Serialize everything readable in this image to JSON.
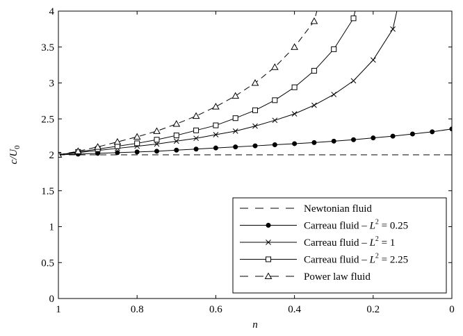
{
  "chart_data": {
    "type": "line",
    "xlabel": "n",
    "ylabel_main": "c/U",
    "ylabel_sub": "0",
    "xlim": [
      1,
      0
    ],
    "ylim": [
      0,
      4
    ],
    "x_reversed": true,
    "grid": false,
    "legend_position": "bottom-right",
    "x_ticks": [
      1,
      0.8,
      0.6,
      0.4,
      0.2,
      0
    ],
    "x_tick_labels": [
      "1",
      "0.8",
      "0.6",
      "0.4",
      "0.2",
      "0"
    ],
    "y_ticks": [
      0,
      0.5,
      1,
      1.5,
      2,
      2.5,
      3,
      3.5,
      4
    ],
    "y_tick_labels": [
      "0",
      "0.5",
      "1",
      "1.5",
      "2",
      "2.5",
      "3",
      "3.5",
      "4"
    ],
    "series": [
      {
        "name": "Newtonian fluid",
        "label_main": "Newtonian fluid",
        "label_sup": "",
        "label_tail": "",
        "line": "dashed",
        "marker": "none",
        "x": [
          1,
          0
        ],
        "y": [
          2,
          2
        ]
      },
      {
        "name": "Carreau fluid – L² = 0.25",
        "label_main": "Carreau fluid – ",
        "label_var": "L",
        "label_sup": "2",
        "label_tail": " = 0.25",
        "line": "solid",
        "marker": "dot",
        "x": [
          1,
          0.95,
          0.9,
          0.85,
          0.8,
          0.75,
          0.7,
          0.65,
          0.6,
          0.55,
          0.5,
          0.45,
          0.4,
          0.35,
          0.3,
          0.25,
          0.2,
          0.15,
          0.1,
          0.05,
          0
        ],
        "y": [
          2.0,
          2.01,
          2.02,
          2.03,
          2.04,
          2.05,
          2.065,
          2.08,
          2.095,
          2.11,
          2.125,
          2.14,
          2.155,
          2.17,
          2.19,
          2.21,
          2.235,
          2.26,
          2.29,
          2.32,
          2.36
        ]
      },
      {
        "name": "Carreau fluid – L² = 1",
        "label_main": "Carreau fluid – ",
        "label_var": "L",
        "label_sup": "2",
        "label_tail": " = 1",
        "line": "solid",
        "marker": "x",
        "x": [
          1,
          0.95,
          0.9,
          0.85,
          0.8,
          0.75,
          0.7,
          0.65,
          0.6,
          0.55,
          0.5,
          0.45,
          0.4,
          0.35,
          0.3,
          0.25,
          0.2,
          0.15
        ],
        "y": [
          2.0,
          2.03,
          2.06,
          2.09,
          2.12,
          2.15,
          2.19,
          2.23,
          2.28,
          2.33,
          2.4,
          2.48,
          2.57,
          2.69,
          2.84,
          3.03,
          3.32,
          3.75
        ]
      },
      {
        "name": "Carreau fluid – L² = 2.25",
        "label_main": "Carreau fluid – ",
        "label_var": "L",
        "label_sup": "2",
        "label_tail": " = 2.25",
        "line": "solid",
        "marker": "square",
        "x": [
          1,
          0.95,
          0.9,
          0.85,
          0.8,
          0.75,
          0.7,
          0.65,
          0.6,
          0.55,
          0.5,
          0.45,
          0.4,
          0.35,
          0.3,
          0.25
        ],
        "y": [
          2.0,
          2.04,
          2.08,
          2.12,
          2.16,
          2.21,
          2.27,
          2.34,
          2.41,
          2.51,
          2.62,
          2.76,
          2.94,
          3.17,
          3.47,
          3.9
        ]
      },
      {
        "name": "Power law fluid",
        "label_main": "Power law fluid",
        "label_sup": "",
        "label_tail": "",
        "line": "dashed",
        "marker": "triangle",
        "x": [
          1,
          0.95,
          0.9,
          0.85,
          0.8,
          0.75,
          0.7,
          0.65,
          0.6,
          0.55,
          0.5,
          0.45,
          0.4,
          0.35
        ],
        "y": [
          2.0,
          2.05,
          2.11,
          2.18,
          2.25,
          2.33,
          2.43,
          2.54,
          2.67,
          2.82,
          3.0,
          3.22,
          3.5,
          3.86
        ]
      }
    ]
  }
}
